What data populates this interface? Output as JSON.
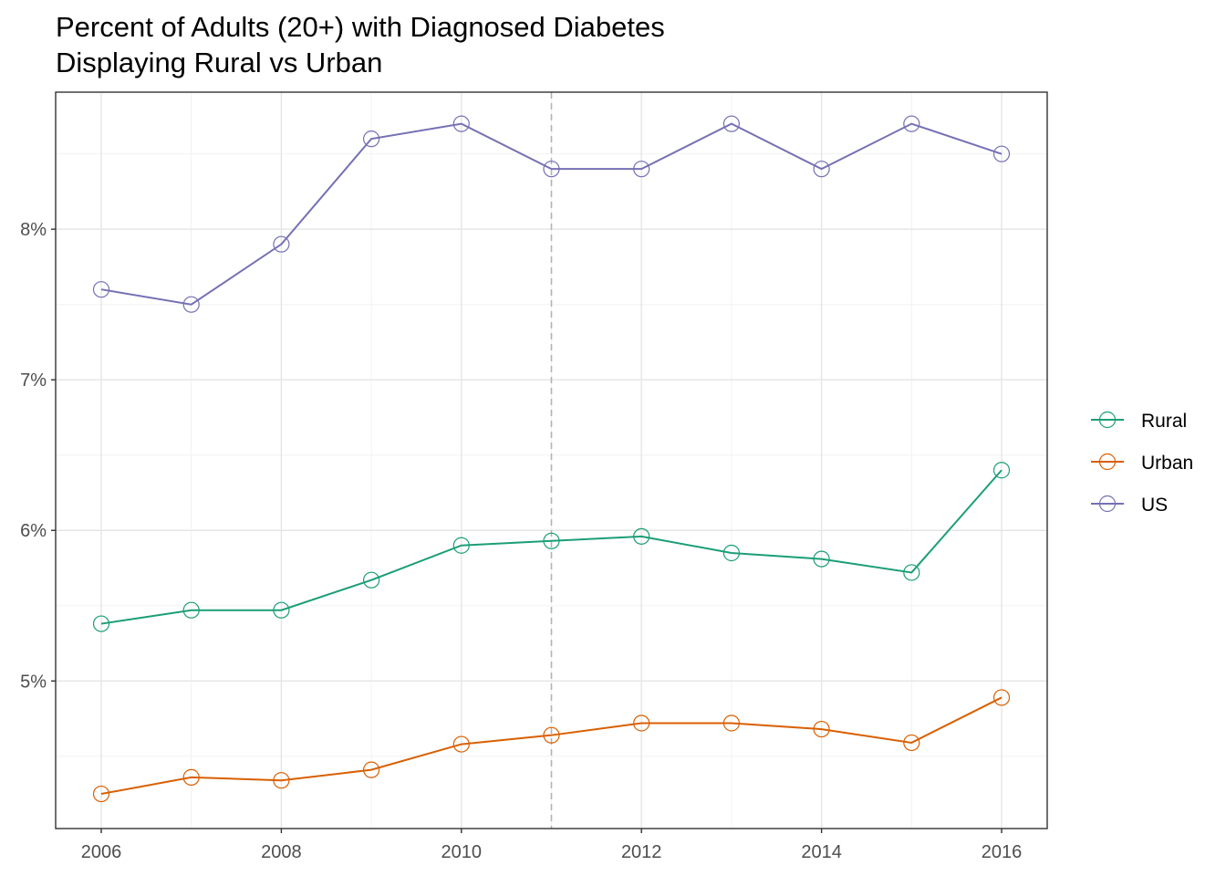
{
  "chart_data": {
    "type": "line",
    "title": "Percent of Adults (20+) with Diagnosed Diabetes",
    "subtitle": "Displaying Rural vs Urban",
    "xlabel": "",
    "ylabel": "",
    "x": [
      2006,
      2007,
      2008,
      2009,
      2010,
      2011,
      2012,
      2013,
      2014,
      2015,
      2016
    ],
    "xlim": [
      2005.5,
      2016.5
    ],
    "ylim": [
      4.02,
      8.91
    ],
    "x_ticks": [
      2006,
      2008,
      2010,
      2012,
      2014,
      2016
    ],
    "x_tick_labels": [
      "2006",
      "2008",
      "2010",
      "2012",
      "2014",
      "2016"
    ],
    "y_ticks": [
      5,
      6,
      7,
      8
    ],
    "y_tick_labels": [
      "5%",
      "6%",
      "7%",
      "8%"
    ],
    "reference_line_x": 2011,
    "grid": true,
    "legend_position": "right",
    "series": [
      {
        "name": "Rural",
        "color": "#1b9e77",
        "values": [
          5.38,
          5.47,
          5.47,
          5.67,
          5.9,
          5.93,
          5.96,
          5.85,
          5.81,
          5.72,
          6.4
        ]
      },
      {
        "name": "Urban",
        "color": "#d95f02",
        "values": [
          4.25,
          4.36,
          4.34,
          4.41,
          4.58,
          4.64,
          4.72,
          4.72,
          4.68,
          4.59,
          4.89
        ]
      },
      {
        "name": "US",
        "color": "#7570b3",
        "values": [
          7.6,
          7.5,
          7.9,
          8.6,
          8.7,
          8.4,
          8.4,
          8.7,
          8.4,
          8.7,
          8.5
        ]
      }
    ]
  }
}
